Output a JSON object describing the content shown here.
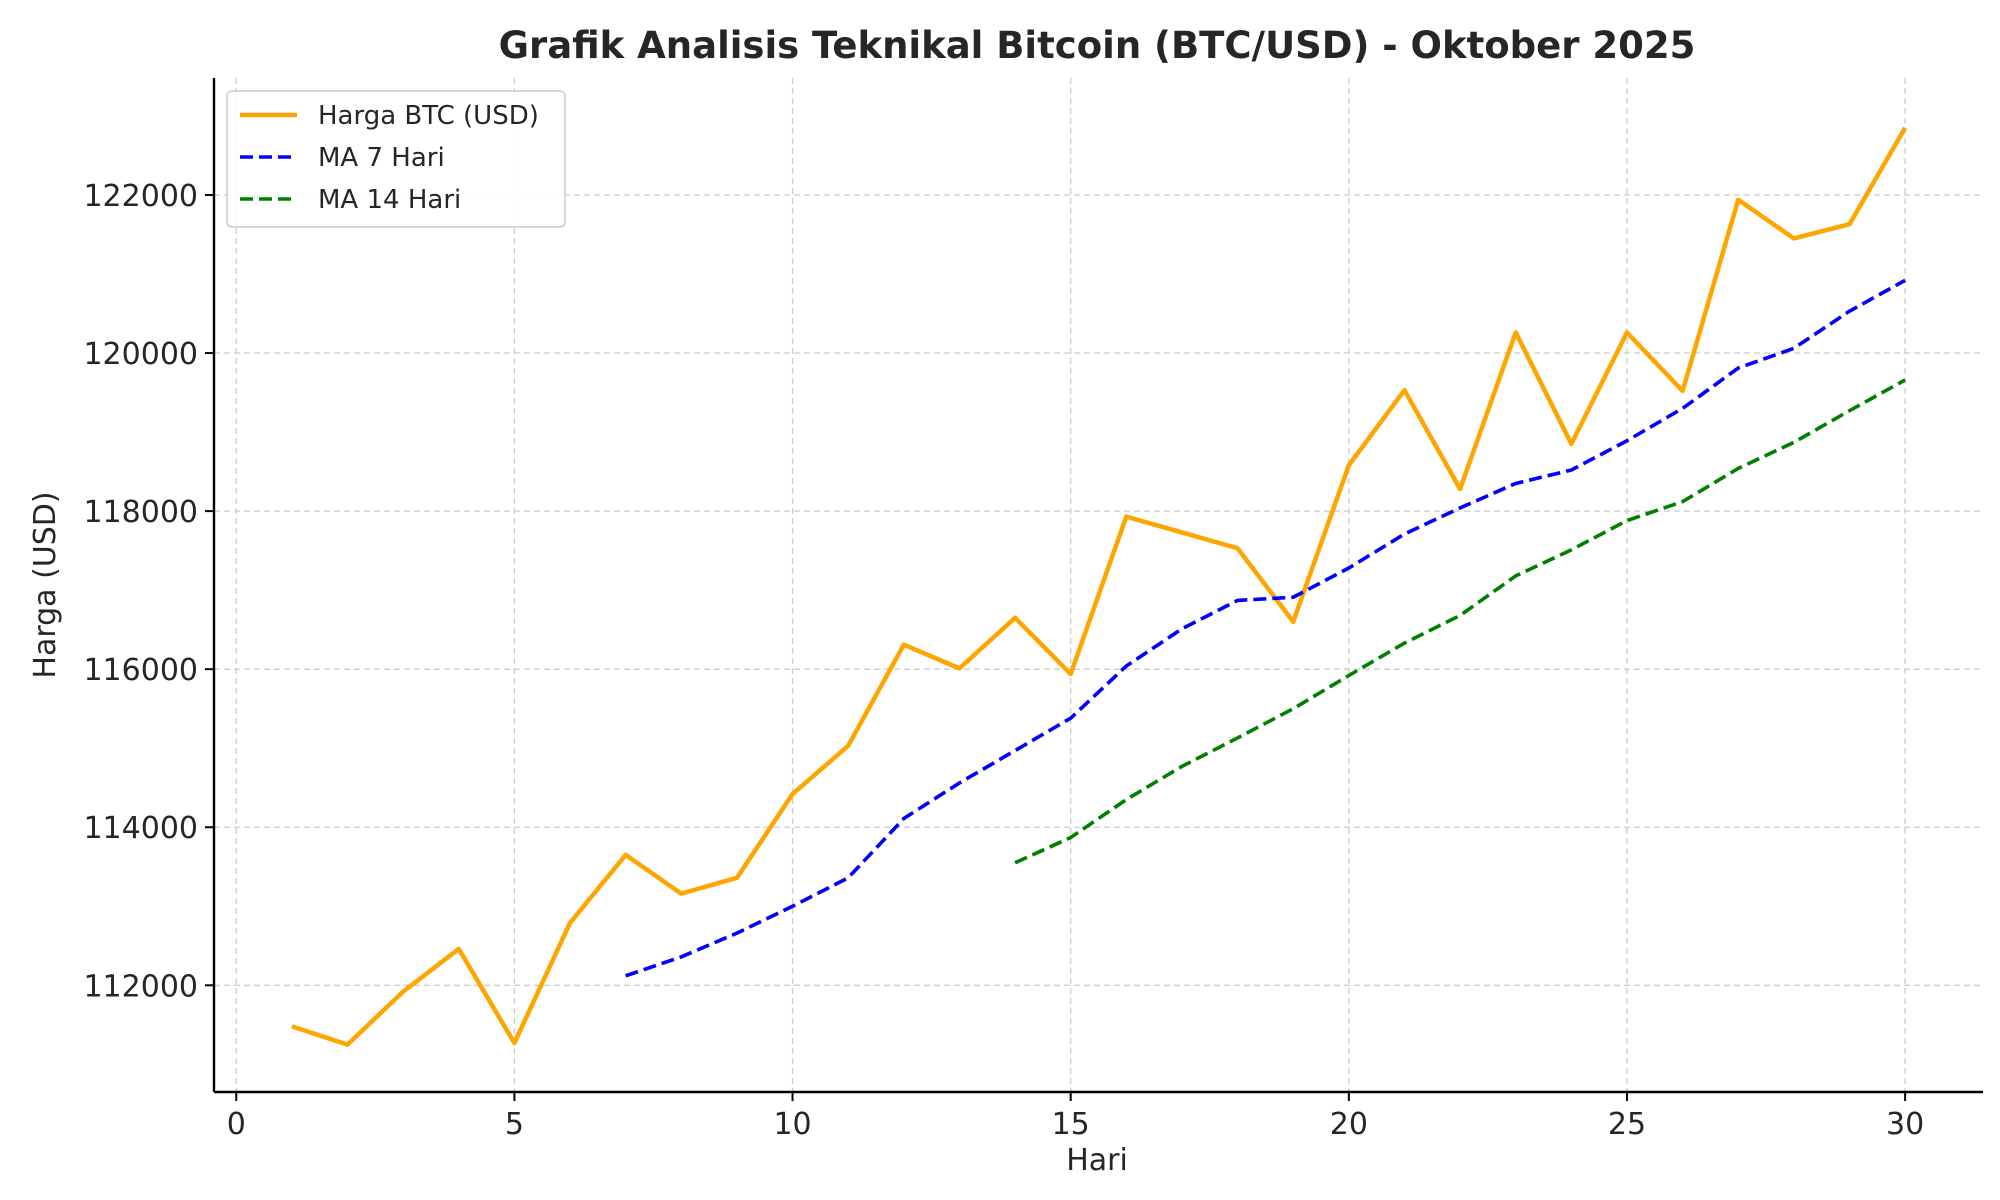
{
  "chart_data": {
    "type": "line",
    "title": "Grafik Analisis Teknikal Bitcoin (BTC/USD) - Oktober 2025",
    "xlabel": "Hari",
    "ylabel": "Harga (USD)",
    "xlim": [
      -0.4,
      31.4
    ],
    "ylim": [
      110650,
      123480
    ],
    "x_ticks": [
      0,
      5,
      10,
      15,
      20,
      25,
      30
    ],
    "y_ticks": [
      112000,
      114000,
      116000,
      118000,
      120000,
      122000
    ],
    "grid": true,
    "legend_position": "top-left",
    "x": [
      1,
      2,
      3,
      4,
      5,
      6,
      7,
      8,
      9,
      10,
      11,
      12,
      13,
      14,
      15,
      16,
      17,
      18,
      19,
      20,
      21,
      22,
      23,
      24,
      25,
      26,
      27,
      28,
      29,
      30
    ],
    "series": [
      {
        "name": "Harga BTC (USD)",
        "color": "#FFA500",
        "style": "solid",
        "values": [
          111480,
          111250,
          111920,
          112460,
          111270,
          112790,
          113650,
          113160,
          113360,
          114420,
          115030,
          116310,
          116010,
          116650,
          115940,
          117930,
          117730,
          117530,
          116600,
          118580,
          119530,
          118280,
          120260,
          118850,
          120260,
          119520,
          121940,
          121450,
          121630,
          122850
        ]
      },
      {
        "name": "MA 7 Hari",
        "color": "#0000FF",
        "style": "dashed",
        "values": [
          null,
          null,
          null,
          null,
          null,
          null,
          112120,
          112360,
          112660,
          113000,
          113360,
          114110,
          114560,
          114970,
          115380,
          116040,
          116510,
          116870,
          116910,
          117280,
          117710,
          118040,
          118350,
          118520,
          118890,
          119300,
          119810,
          120060,
          120530,
          120920
        ]
      },
      {
        "name": "MA 14 Hari",
        "color": "#008000",
        "style": "dashed",
        "values": [
          null,
          null,
          null,
          null,
          null,
          null,
          null,
          null,
          null,
          null,
          null,
          null,
          null,
          113550,
          113870,
          114350,
          114770,
          115130,
          115500,
          115920,
          116330,
          116680,
          117180,
          117510,
          117880,
          118120,
          118540,
          118870,
          119270,
          119660
        ]
      }
    ]
  }
}
